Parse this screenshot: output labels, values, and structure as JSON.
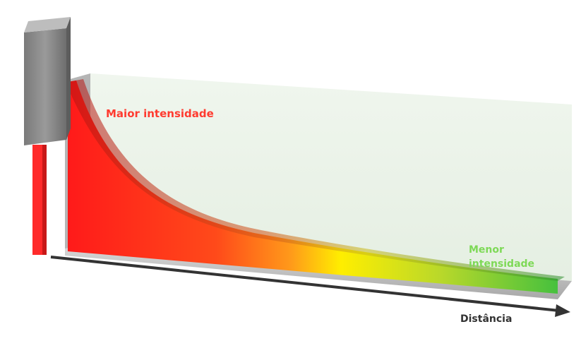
{
  "labels": {
    "high": "Maior intensidade",
    "low_line1": "Menor",
    "low_line2": "intensidade",
    "axis": "Distância"
  },
  "colors": {
    "high": "#ff3b30",
    "low": "#7ed957",
    "axis": "#333333",
    "source_body": "#8c8c8c",
    "source_pin": "#ff2a2a",
    "back_panel": "#eaf3e8",
    "curve_start": "#ff1a1a",
    "curve_mid": "#ff8c1a",
    "curve_yellow": "#ffee00",
    "curve_end": "#3fbf3f"
  },
  "diagram_data": {
    "relationship": "intensity decreases as distance increases",
    "curve_shape": "inverse-square-like decay",
    "gradient_stops": [
      "#ff1a1a",
      "#ff8c1a",
      "#ffee00",
      "#3fbf3f"
    ]
  }
}
